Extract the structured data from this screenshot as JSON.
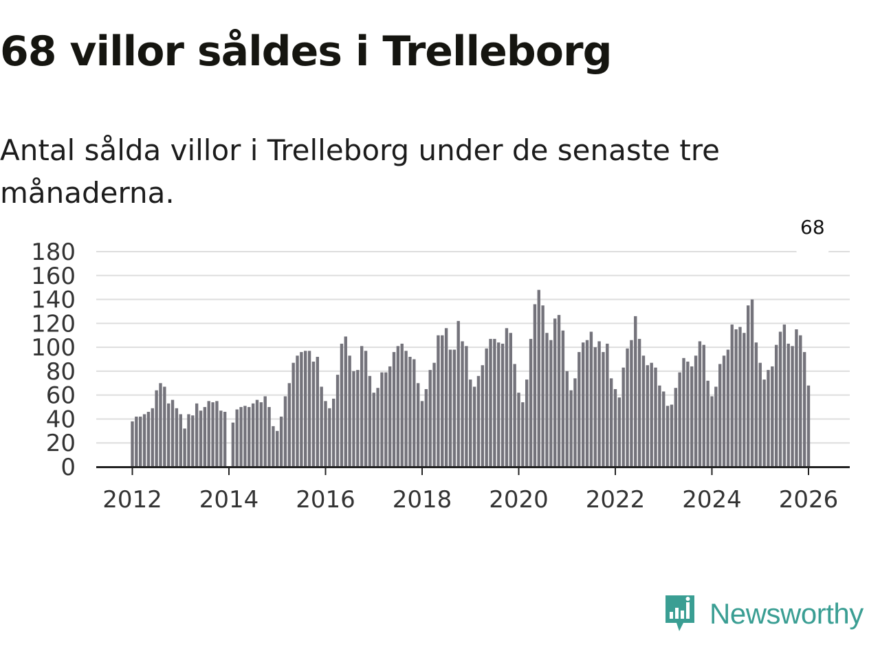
{
  "header": {
    "title": "68 villor såldes i Trelleborg",
    "subtitle": "Antal sålda villor i Trelleborg under de senaste tre månaderna."
  },
  "brand": {
    "name": "Newsworthy",
    "color": "#3a9e93",
    "icon": "newsworthy-logo-icon"
  },
  "colors": {
    "bar": "#74737b",
    "highlight": "#1a9e94",
    "grid": "#dddddd",
    "axis": "#222222"
  },
  "chart_data": {
    "type": "bar",
    "title": "68 villor såldes i Trelleborg",
    "xlabel": "",
    "ylabel": "",
    "ylim": [
      0,
      180
    ],
    "yticks": [
      "0",
      "20",
      "40",
      "60",
      "80",
      "100",
      "120",
      "140",
      "160",
      "180"
    ],
    "xticks": [
      "2012",
      "2014",
      "2016",
      "2018",
      "2020",
      "2022",
      "2024",
      "2026"
    ],
    "x_start": "2012-01",
    "grid": true,
    "callout": "68",
    "highlight_index": 169,
    "values": [
      38,
      42,
      42,
      44,
      46,
      49,
      64,
      70,
      67,
      53,
      56,
      49,
      44,
      32,
      44,
      43,
      53,
      47,
      50,
      55,
      54,
      55,
      47,
      46,
      null,
      37,
      48,
      50,
      51,
      50,
      53,
      56,
      54,
      59,
      50,
      34,
      30,
      42,
      59,
      70,
      87,
      93,
      96,
      97,
      97,
      88,
      92,
      67,
      55,
      49,
      57,
      77,
      103,
      109,
      93,
      80,
      81,
      101,
      97,
      76,
      62,
      66,
      79,
      79,
      84,
      96,
      101,
      103,
      97,
      92,
      90,
      70,
      55,
      65,
      81,
      87,
      110,
      110,
      116,
      98,
      98,
      122,
      105,
      101,
      73,
      67,
      76,
      85,
      99,
      107,
      107,
      104,
      103,
      116,
      112,
      86,
      62,
      54,
      73,
      107,
      136,
      148,
      135,
      112,
      106,
      124,
      127,
      114,
      80,
      64,
      74,
      96,
      104,
      106,
      113,
      100,
      105,
      96,
      103,
      74,
      65,
      58,
      83,
      99,
      106,
      126,
      107,
      93,
      85,
      87,
      83,
      68,
      63,
      51,
      52,
      66,
      79,
      91,
      88,
      84,
      93,
      105,
      102,
      72,
      59,
      67,
      86,
      93,
      98,
      119,
      115,
      117,
      112,
      135,
      140,
      104,
      87,
      73,
      81,
      84,
      102,
      113,
      119,
      103,
      101,
      115,
      110,
      96,
      68
    ]
  }
}
